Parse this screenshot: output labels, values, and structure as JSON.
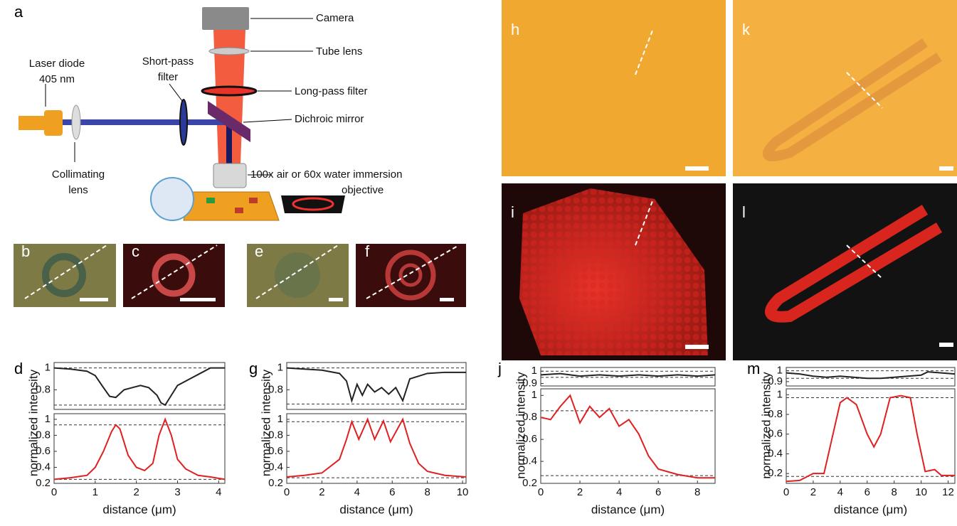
{
  "panel_labels": [
    "a",
    "b",
    "c",
    "d",
    "e",
    "f",
    "g",
    "h",
    "i",
    "j",
    "k",
    "l",
    "m"
  ],
  "diagram": {
    "labels": {
      "camera": [
        "Camera"
      ],
      "tube_lens": [
        "Tube lens"
      ],
      "long_pass": [
        "Long-pass filter"
      ],
      "dichroic": [
        "Dichroic mirror"
      ],
      "objective": [
        "100x air or 60x water immersion",
        "objective"
      ],
      "laser": [
        "Laser diode",
        "405 nm"
      ],
      "short_pass": [
        "Short-pass",
        "filter"
      ],
      "collimating": [
        "Collimating",
        "lens"
      ]
    }
  },
  "chart_data": [
    {
      "type": "line",
      "x": [
        0,
        0.4,
        0.8,
        1.0,
        1.2,
        1.35,
        1.5,
        1.7,
        1.9,
        2.1,
        2.3,
        2.5,
        2.6,
        2.7,
        2.8,
        3.0,
        3.3,
        3.6,
        3.8,
        4.15
      ],
      "series": [
        {
          "color": "#222222",
          "values": [
            1.0,
            0.99,
            0.97,
            0.93,
            0.82,
            0.74,
            0.73,
            0.8,
            0.82,
            0.84,
            0.82,
            0.75,
            0.68,
            0.66,
            0.72,
            0.84,
            0.9,
            0.96,
            1.0,
            1.0
          ]
        }
      ],
      "hlines": [
        1.0,
        0.66
      ],
      "xlim": [
        0,
        4.15
      ],
      "ylim": [
        0.62,
        1.05
      ],
      "yticks": [
        0.8,
        1
      ]
    },
    {
      "type": "line",
      "x": [
        0,
        0.4,
        0.8,
        1.0,
        1.2,
        1.4,
        1.5,
        1.6,
        1.8,
        2.0,
        2.2,
        2.4,
        2.55,
        2.7,
        2.85,
        3.0,
        3.2,
        3.5,
        3.8,
        4.15
      ],
      "series": [
        {
          "color": "#e02020",
          "values": [
            0.25,
            0.27,
            0.3,
            0.4,
            0.6,
            0.85,
            0.93,
            0.88,
            0.55,
            0.4,
            0.36,
            0.45,
            0.8,
            1.0,
            0.8,
            0.5,
            0.38,
            0.3,
            0.28,
            0.25
          ]
        }
      ],
      "hlines": [
        0.93,
        0.25
      ],
      "xlim": [
        0,
        4.15
      ],
      "ylim": [
        0.2,
        1.07
      ],
      "yticks": [
        0.2,
        0.4,
        0.6,
        0.8,
        1
      ],
      "xticks": [
        0,
        1,
        2,
        3,
        4
      ],
      "xlabel": "distance (μm)",
      "ylabel": "normalized intensity"
    },
    {
      "type": "line",
      "x": [
        0,
        1,
        2,
        3,
        3.4,
        3.7,
        4.0,
        4.3,
        4.6,
        5.0,
        5.4,
        5.8,
        6.2,
        6.6,
        7.0,
        8,
        9,
        10.2
      ],
      "series": [
        {
          "color": "#222222",
          "values": [
            1.0,
            0.99,
            0.98,
            0.95,
            0.88,
            0.7,
            0.85,
            0.75,
            0.85,
            0.78,
            0.82,
            0.76,
            0.82,
            0.7,
            0.9,
            0.95,
            0.96,
            0.96
          ]
        }
      ],
      "hlines": [
        1.0,
        0.67
      ],
      "xlim": [
        0,
        10.2
      ],
      "ylim": [
        0.62,
        1.05
      ],
      "yticks": [
        0.8,
        1
      ]
    },
    {
      "type": "line",
      "x": [
        0,
        1,
        2,
        3,
        3.4,
        3.7,
        4.1,
        4.6,
        5.0,
        5.5,
        5.9,
        6.6,
        7.0,
        7.5,
        8,
        9,
        10.2
      ],
      "series": [
        {
          "color": "#e02020",
          "values": [
            0.28,
            0.3,
            0.33,
            0.5,
            0.75,
            0.97,
            0.75,
            1.0,
            0.75,
            0.98,
            0.72,
            1.0,
            0.7,
            0.45,
            0.35,
            0.3,
            0.28
          ]
        }
      ],
      "hlines": [
        0.97,
        0.27
      ],
      "xlim": [
        0,
        10.2
      ],
      "ylim": [
        0.2,
        1.07
      ],
      "yticks": [
        0.2,
        0.4,
        0.6,
        0.8,
        1
      ],
      "xticks": [
        0,
        2,
        4,
        6,
        8,
        10
      ],
      "xlabel": "distance (μm)",
      "ylabel": "normalized intensity"
    },
    {
      "type": "line",
      "x": [
        0,
        1,
        2,
        3,
        4,
        5,
        6,
        7,
        8,
        8.9
      ],
      "series": [
        {
          "color": "#222222",
          "values": [
            0.97,
            0.98,
            0.96,
            0.97,
            0.96,
            0.97,
            0.96,
            0.97,
            0.96,
            0.97
          ]
        }
      ],
      "hlines": [
        1.0,
        0.95
      ],
      "xlim": [
        0,
        8.9
      ],
      "ylim": [
        0.88,
        1.03
      ],
      "yticks": [
        0.9,
        1
      ]
    },
    {
      "type": "line",
      "x": [
        0,
        0.5,
        1,
        1.5,
        2,
        2.5,
        3,
        3.5,
        4,
        4.5,
        5,
        5.5,
        6,
        7,
        8,
        8.9
      ],
      "series": [
        {
          "color": "#e02020",
          "values": [
            0.8,
            0.78,
            0.9,
            1.0,
            0.75,
            0.9,
            0.8,
            0.88,
            0.72,
            0.78,
            0.65,
            0.45,
            0.33,
            0.28,
            0.25,
            0.25
          ]
        }
      ],
      "hlines": [
        0.86,
        0.27
      ],
      "xlim": [
        0,
        8.9
      ],
      "ylim": [
        0.2,
        1.06
      ],
      "yticks": [
        0.2,
        0.4,
        0.6,
        0.8,
        1
      ],
      "xticks": [
        0,
        2,
        4,
        6,
        8
      ],
      "xlabel": "distance (μm)",
      "ylabel": "normalized intensity"
    },
    {
      "type": "line",
      "x": [
        0,
        1,
        2,
        3,
        4,
        5,
        6,
        7,
        8,
        9,
        10,
        10.5,
        12.5
      ],
      "series": [
        {
          "color": "#222222",
          "values": [
            0.98,
            0.97,
            0.95,
            0.94,
            0.95,
            0.94,
            0.93,
            0.93,
            0.94,
            0.95,
            0.96,
            0.99,
            0.97
          ]
        }
      ],
      "hlines": [
        1.0,
        0.93
      ],
      "xlim": [
        0,
        12.5
      ],
      "ylim": [
        0.86,
        1.03
      ],
      "yticks": [
        0.9,
        1
      ]
    },
    {
      "type": "line",
      "x": [
        0,
        1,
        2,
        2.8,
        3.3,
        4,
        4.5,
        5.2,
        6,
        6.5,
        7,
        7.7,
        8.5,
        9.2,
        9.7,
        10.3,
        11,
        11.5,
        12.5
      ],
      "series": [
        {
          "color": "#e02020",
          "values": [
            0.12,
            0.13,
            0.2,
            0.2,
            0.5,
            0.92,
            0.97,
            0.9,
            0.6,
            0.47,
            0.6,
            0.97,
            0.99,
            0.97,
            0.6,
            0.22,
            0.24,
            0.18,
            0.18
          ]
        }
      ],
      "hlines": [
        0.97,
        0.17
      ],
      "xlim": [
        0,
        12.5
      ],
      "ylim": [
        0.1,
        1.06
      ],
      "yticks": [
        0.2,
        0.4,
        0.6,
        0.8,
        1
      ],
      "xticks": [
        0,
        2,
        4,
        6,
        8,
        10,
        12
      ],
      "xlabel": "distance (μm)",
      "ylabel": "normalized intensity"
    }
  ]
}
